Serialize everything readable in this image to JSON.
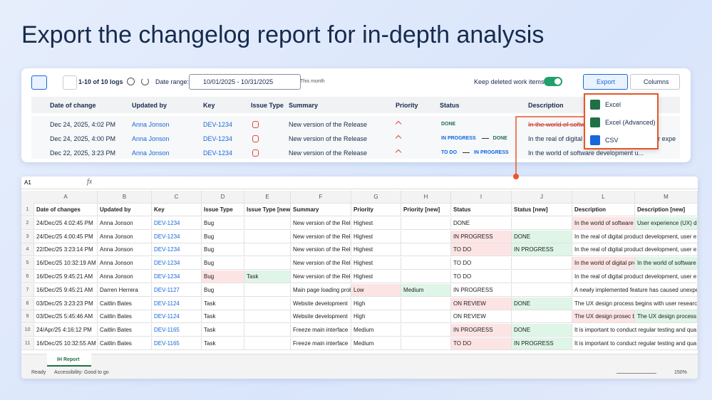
{
  "title": "Export the changelog report for in-depth analysis",
  "toolbar": {
    "count": "1-10 of 10 logs",
    "date_range_label": "Date range:",
    "date_range": "10/01/2025 - 10/31/2025",
    "this_month": "This month",
    "keep_deleted": "Keep deleted work items",
    "export": "Export",
    "columns": "Columns"
  },
  "panel": {
    "headers": [
      "Date of change",
      "Updated by",
      "Key",
      "Issue Type",
      "Summary",
      "Priority",
      "Status",
      "Description"
    ],
    "rows": [
      {
        "date": "Dec 24, 2025, 4:02 PM",
        "user": "Anna Jonson",
        "key": "DEV-1234",
        "summary": "New version of the Release",
        "status": [
          "DONE"
        ],
        "description": "In the world of softw"
      },
      {
        "date": "Dec 24, 2025, 4:00 PM",
        "user": "Anna Jonson",
        "key": "DEV-1234",
        "summary": "New version of the Release",
        "status": [
          "IN PROGRESS",
          "DONE"
        ],
        "description": "In the real of digital product development, user expe"
      },
      {
        "date": "Dec 22, 2025, 3:23 PM",
        "user": "Anna Jonson",
        "key": "DEV-1234",
        "summary": "New version of the Release",
        "status": [
          "TO DO",
          "IN PROGRESS"
        ],
        "description": "In the world of software development u..."
      }
    ]
  },
  "export_menu": [
    "Excel",
    "Excel (Advanced)",
    "CSV"
  ],
  "sheet": {
    "cell_ref": "A1",
    "fx": "fx",
    "tab": "IH Report",
    "status": "Ready",
    "accessibility": "Accessibility: Good to go",
    "zoom": "150%",
    "columns": [
      "A",
      "B",
      "C",
      "D",
      "E",
      "F",
      "G",
      "H",
      "I",
      "J",
      "L",
      "M"
    ],
    "row_numbers": [
      1,
      2,
      3,
      4,
      5,
      6,
      7,
      8,
      9,
      10,
      11
    ],
    "header": [
      "Date of changes",
      "Updated by",
      "Key",
      "Issue Type",
      "Issue Type [new]",
      "Summary",
      "Priority",
      "Priority [new]",
      "Status",
      "Status [new]",
      "Description",
      "Description [new]"
    ],
    "rows": [
      {
        "cells": [
          "24/Dec/25 4:02:45 PM",
          "Anna Jonson",
          "DEV-1234",
          "Bug",
          null,
          "New version of the Rele",
          "Highest",
          null,
          "DONE",
          null,
          "In the world of software",
          "User experience (UX) de"
        ],
        "highlight": {
          "red": [
            10
          ],
          "green": [
            11
          ]
        }
      },
      {
        "cells": [
          "24/Dec/25 4:00:45 PM",
          "Anna Jonson",
          "DEV-1234",
          "Bug",
          null,
          "New version of the Rele",
          "Highest",
          null,
          "IN PROGRESS",
          "DONE",
          "In the real of digital product development, user e",
          null
        ],
        "highlight": {
          "red": [
            8
          ],
          "green": [
            9
          ]
        }
      },
      {
        "cells": [
          "22/Dec/25 3:23:14 PM",
          "Anna Jonson",
          "DEV-1234",
          "Bug",
          null,
          "New version of the Rele",
          "Highest",
          null,
          "TO DO",
          "IN PROGRESS",
          "In the real of digital product development, user e",
          null
        ],
        "highlight": {
          "red": [
            8
          ],
          "green": [
            9
          ]
        }
      },
      {
        "cells": [
          "16/Dec/25 10:32:19 AM",
          "Anna Jonson",
          "DEV-1234",
          "Bug",
          null,
          "New version of the Rele",
          "Highest",
          null,
          "TO DO",
          null,
          "In the world of digital proc",
          "In the world of software"
        ],
        "highlight": {
          "red": [
            10
          ],
          "green": [
            11
          ]
        }
      },
      {
        "cells": [
          "16/Dec/25 9:45:21 AM",
          "Anna Jonson",
          "DEV-1234",
          "Bug",
          "Task",
          "New version of the Rele",
          "Highest",
          null,
          "TO DO",
          null,
          "In the real of digital product development, user e",
          null
        ],
        "highlight": {
          "red": [
            3
          ],
          "green": [
            4
          ]
        }
      },
      {
        "cells": [
          "16/Dec/25 9:45:21 AM",
          "Darren Herrera",
          "DEV-1127",
          "Bug",
          null,
          "Main page loading prob",
          "Low",
          "Medium",
          "IN PROGRESS",
          null,
          "A newly implemented feature has caused unexpe",
          null
        ],
        "highlight": {
          "red": [
            6
          ],
          "green": [
            7
          ]
        }
      },
      {
        "cells": [
          "03/Dec/25 3:23:23 PM",
          "Caitlin Bates",
          "DEV-1124",
          "Task",
          null,
          "Website development",
          "High",
          null,
          "ON REVIEW",
          "DONE",
          "The UX design process begins with user research,",
          null
        ],
        "highlight": {
          "red": [
            8
          ],
          "green": [
            9
          ]
        }
      },
      {
        "cells": [
          "03/Dec/25 5:45:46 AM",
          "Caitlin Bates",
          "DEV-1124",
          "Task",
          null,
          "Website development",
          "High",
          null,
          "ON REVIEW",
          null,
          "The UX design prosec be",
          "The UX design process b"
        ],
        "highlight": {
          "red": [
            10
          ],
          "green": [
            11
          ]
        }
      },
      {
        "cells": [
          "24/Apr/25 4:16:12 PM",
          "Caitlin Bates",
          "DEV-1165",
          "Task",
          null,
          "Freeze main interface",
          "Medium",
          null,
          "IN PROGRESS",
          "DONE",
          "It is important to conduct regular testing and qua",
          null
        ],
        "highlight": {
          "red": [
            8
          ],
          "green": [
            9
          ]
        }
      },
      {
        "cells": [
          "16/Dec/25 10:32:55 AM",
          "Caitlin Bates",
          "DEV-1165",
          "Task",
          null,
          "Freeze main interface",
          "Medium",
          null,
          "TO DO",
          "IN PROGRESS",
          "It is important to conduct regular testing and qua",
          null
        ],
        "highlight": {
          "red": [
            8
          ],
          "green": [
            9
          ]
        }
      }
    ]
  }
}
